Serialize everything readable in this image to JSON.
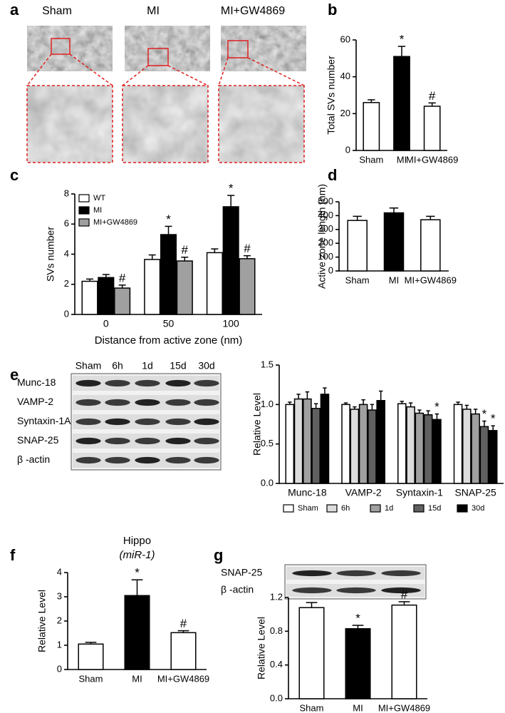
{
  "images": {
    "a": {
      "panel": "a",
      "labels": [
        "Sham",
        "MI",
        "MI+GW4869"
      ]
    },
    "e": {
      "panel": "e",
      "lanes": [
        "Sham",
        "6h",
        "1d",
        "15d",
        "30d"
      ],
      "rows": [
        "Munc-18",
        "VAMP-2",
        "Syntaxin-1A",
        "SNAP-25",
        "β -actin"
      ]
    },
    "g": {
      "panel": "g",
      "rows": [
        "SNAP-25",
        "β -actin"
      ]
    }
  },
  "chart_data": [
    {
      "panel": "b",
      "type": "bar",
      "ylabel": "Total SVs number",
      "categories": [
        "Sham",
        "MI",
        "MI+GW4869"
      ],
      "values": [
        26,
        51,
        24
      ],
      "errors": [
        1.5,
        5.5,
        1.8
      ],
      "colors": [
        "#ffffff",
        "#000000",
        "#ffffff"
      ],
      "annotations": [
        null,
        "*",
        "#"
      ],
      "ylim": [
        0,
        60
      ],
      "yticks": [
        0,
        20,
        40,
        60
      ]
    },
    {
      "panel": "c",
      "type": "bar",
      "ylabel": "SVs number",
      "xlabel": "Distance from active zone (nm)",
      "categories": [
        "0",
        "50",
        "100"
      ],
      "legend": "upper left",
      "series": [
        {
          "name": "WT",
          "color": "#ffffff",
          "values": [
            2.2,
            3.65,
            4.1
          ],
          "errors": [
            0.15,
            0.3,
            0.25
          ]
        },
        {
          "name": "MI",
          "color": "#000000",
          "values": [
            2.45,
            5.3,
            7.15
          ],
          "errors": [
            0.2,
            0.55,
            0.75
          ],
          "annotations": [
            null,
            "*",
            "*"
          ]
        },
        {
          "name": "MI+GW4869",
          "color": "#a0a0a0",
          "values": [
            1.75,
            3.55,
            3.7
          ],
          "errors": [
            0.2,
            0.25,
            0.2
          ],
          "annotations": [
            "#",
            "#",
            "#"
          ]
        }
      ],
      "ylim": [
        0,
        8
      ],
      "yticks": [
        0,
        2,
        4,
        6,
        8
      ]
    },
    {
      "panel": "d",
      "type": "bar",
      "ylabel": "Active zone length (nm)",
      "categories": [
        "Sham",
        "MI",
        "MI+GW4869"
      ],
      "values": [
        365,
        420,
        370
      ],
      "errors": [
        30,
        35,
        25
      ],
      "colors": [
        "#ffffff",
        "#000000",
        "#ffffff"
      ],
      "ylim": [
        0,
        500
      ],
      "yticks": [
        0,
        100,
        200,
        300,
        400,
        500
      ]
    },
    {
      "panel": "e",
      "type": "bar",
      "ylabel": "Relative Level",
      "categories": [
        "Munc-18",
        "VAMP-2",
        "Syntaxin-1",
        "SNAP-25"
      ],
      "legend": "bottom",
      "series": [
        {
          "name": "Sham",
          "color": "#ffffff",
          "values": [
            1.0,
            1.0,
            1.01,
            1.0
          ],
          "errors": [
            0.03,
            0.02,
            0.03,
            0.03
          ]
        },
        {
          "name": "6h",
          "color": "#dcdcdc",
          "values": [
            1.07,
            0.94,
            0.97,
            0.94
          ],
          "errors": [
            0.06,
            0.03,
            0.05,
            0.05
          ]
        },
        {
          "name": "1d",
          "color": "#a0a0a0",
          "values": [
            1.07,
            1.0,
            0.89,
            0.88
          ],
          "errors": [
            0.09,
            0.06,
            0.04,
            0.06
          ]
        },
        {
          "name": "15d",
          "color": "#606060",
          "values": [
            0.95,
            0.93,
            0.87,
            0.72
          ],
          "errors": [
            0.06,
            0.07,
            0.05,
            0.07
          ],
          "annotations": [
            null,
            null,
            null,
            "*"
          ]
        },
        {
          "name": "30d",
          "color": "#000000",
          "values": [
            1.13,
            1.05,
            0.81,
            0.67
          ],
          "errors": [
            0.08,
            0.12,
            0.07,
            0.06
          ],
          "annotations": [
            null,
            null,
            "*",
            "*"
          ]
        }
      ],
      "ylim": [
        0,
        1.5
      ],
      "yticks": [
        {
          "value": 0,
          "label": "0.0"
        },
        0.5,
        {
          "value": 1,
          "label": "1.0"
        },
        1.5
      ]
    },
    {
      "panel": "f",
      "type": "bar",
      "title": "Hippo",
      "subtitle": "(miR-1)",
      "ylabel": "Relative Level",
      "categories": [
        "Sham",
        "MI",
        "MI+GW4869"
      ],
      "values": [
        1.05,
        3.05,
        1.52
      ],
      "errors": [
        0.07,
        0.65,
        0.08
      ],
      "colors": [
        "#ffffff",
        "#000000",
        "#ffffff"
      ],
      "annotations": [
        null,
        "*",
        "#"
      ],
      "ylim": [
        0,
        4
      ],
      "yticks": [
        0,
        1,
        2,
        3,
        4
      ]
    },
    {
      "panel": "g",
      "type": "bar",
      "ylabel": "Relative Level",
      "categories": [
        "Sham",
        "MI",
        "MI+GW4869"
      ],
      "values": [
        1.08,
        0.83,
        1.11
      ],
      "errors": [
        0.06,
        0.04,
        0.04
      ],
      "colors": [
        "#ffffff",
        "#000000",
        "#ffffff"
      ],
      "annotations": [
        null,
        "*",
        "#"
      ],
      "ylim": [
        0,
        1.2
      ],
      "yticks": [
        {
          "value": 0,
          "label": "0.0"
        },
        0.4,
        0.8,
        1.2
      ]
    }
  ]
}
